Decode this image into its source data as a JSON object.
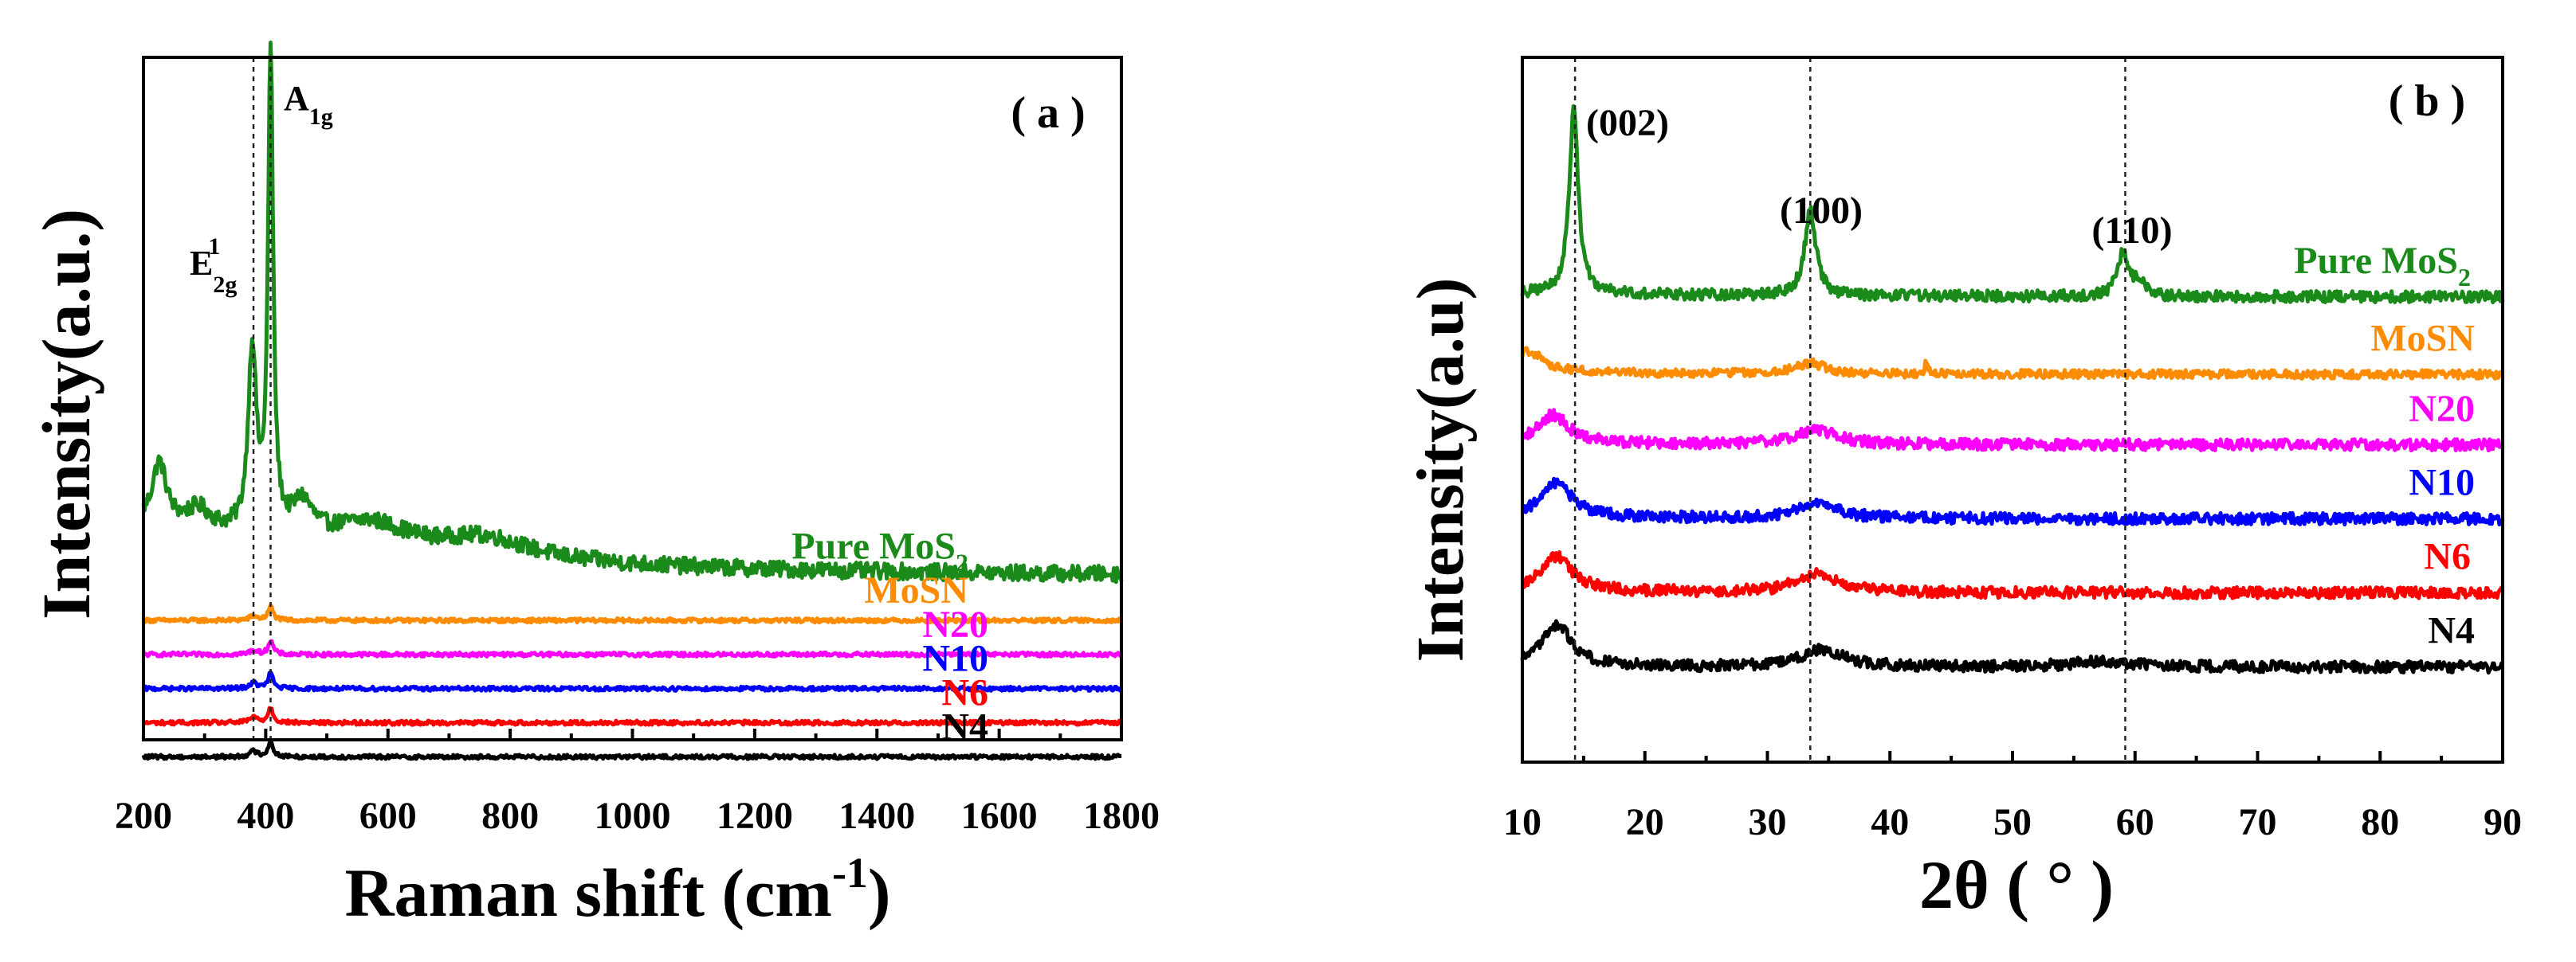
{
  "chart_data": [
    {
      "type": "line",
      "panel_label": "( a )",
      "xlabel": "Raman shift (cm",
      "xlabel_sup": "-1",
      "xlabel_tail": ")",
      "ylabel": "Intensity(a.u.)",
      "xlim": [
        200,
        1800
      ],
      "xticks": [
        "200",
        "400",
        "600",
        "800",
        "1000",
        "1200",
        "1400",
        "1600",
        "1800"
      ],
      "y_ticks_shown": false,
      "peaks": [
        {
          "name": "E",
          "sub": "2g",
          "sup": "1",
          "position": 380
        },
        {
          "name": "A",
          "sub": "1g",
          "position": 408
        }
      ],
      "series": [
        {
          "name": "Pure MoS",
          "name_sub": "2",
          "color": "#1a8a1a",
          "offset": 0.24,
          "peaks": [
            [
              226,
              0.09,
              14
            ],
            [
              290,
              0.03,
              25
            ],
            [
              378,
              0.27,
              8
            ],
            [
              408,
              0.7,
              5
            ],
            [
              460,
              0.05,
              20
            ],
            [
              570,
              0.04,
              80
            ],
            [
              760,
              0.03,
              90
            ]
          ],
          "decay": 0.3,
          "noise": 0.012
        },
        {
          "name": "MoSN",
          "color": "#ff8c00",
          "offset": 0.175,
          "peaks": [
            [
              380,
              0.006,
              8
            ],
            [
              408,
              0.02,
              5
            ]
          ],
          "decay": 0.0,
          "noise": 0.003
        },
        {
          "name": "N20",
          "color": "#ff00ff",
          "offset": 0.125,
          "peaks": [
            [
              380,
              0.006,
              8
            ],
            [
              408,
              0.02,
              5
            ]
          ],
          "decay": 0.0,
          "noise": 0.003
        },
        {
          "name": "N10",
          "color": "#0000ff",
          "offset": 0.075,
          "peaks": [
            [
              380,
              0.008,
              8
            ],
            [
              408,
              0.022,
              5
            ]
          ],
          "decay": 0.0,
          "noise": 0.003
        },
        {
          "name": "N6",
          "color": "#ff0000",
          "offset": 0.025,
          "peaks": [
            [
              380,
              0.008,
              8
            ],
            [
              408,
              0.022,
              5
            ]
          ],
          "decay": 0.0,
          "noise": 0.003
        },
        {
          "name": "N4",
          "color": "#000000",
          "offset": -0.025,
          "peaks": [
            [
              380,
              0.008,
              8
            ],
            [
              408,
              0.022,
              5
            ]
          ],
          "decay": 0.0,
          "noise": 0.003
        }
      ]
    },
    {
      "type": "line",
      "panel_label": "( b )",
      "xlabel": "2θ ( ° )",
      "ylabel": "Intensity(a.u)",
      "xlim": [
        10,
        90
      ],
      "xticks": [
        "10",
        "20",
        "30",
        "40",
        "50",
        "60",
        "70",
        "80",
        "90"
      ],
      "y_ticks_shown": false,
      "peaks": [
        {
          "name": "(002)",
          "position": 14.3
        },
        {
          "name": "(100)",
          "position": 33.5
        },
        {
          "name": "(110)",
          "position": 59.2
        }
      ],
      "series": [
        {
          "name": "Pure MoS",
          "name_sub": "2",
          "color": "#1a8a1a",
          "offset": 0.66,
          "peaks": [
            [
              14.2,
              0.26,
              0.45
            ],
            [
              33.5,
              0.12,
              0.55
            ],
            [
              59.0,
              0.06,
              0.55
            ],
            [
              60.3,
              0.02,
              0.5
            ]
          ],
          "decay": 0.02,
          "noise": 0.008
        },
        {
          "name": "MoSN",
          "color": "#ff8c00",
          "offset": 0.55,
          "peaks": [
            [
              10.5,
              0.03,
              1.5
            ],
            [
              33.5,
              0.015,
              1.5
            ],
            [
              43.0,
              0.02,
              0.15
            ]
          ],
          "decay": 0.01,
          "noise": 0.006
        },
        {
          "name": "N20",
          "color": "#ff00ff",
          "offset": 0.45,
          "peaks": [
            [
              12.5,
              0.04,
              1.5
            ],
            [
              34.0,
              0.02,
              2.0
            ]
          ],
          "decay": 0.01,
          "noise": 0.008
        },
        {
          "name": "N10",
          "color": "#0000ff",
          "offset": 0.345,
          "peaks": [
            [
              12.8,
              0.05,
              1.5
            ],
            [
              34.0,
              0.02,
              2.0
            ]
          ],
          "decay": 0.01,
          "noise": 0.008
        },
        {
          "name": "N6",
          "color": "#ff0000",
          "offset": 0.24,
          "peaks": [
            [
              12.8,
              0.05,
              1.5
            ],
            [
              34.0,
              0.025,
              2.0
            ]
          ],
          "decay": 0.01,
          "noise": 0.008
        },
        {
          "name": "N4",
          "color": "#000000",
          "offset": 0.135,
          "peaks": [
            [
              12.8,
              0.06,
              1.5
            ],
            [
              34.5,
              0.025,
              2.0
            ],
            [
              57.5,
              0.008,
              3.0
            ]
          ],
          "decay": 0.0,
          "noise": 0.008
        }
      ]
    }
  ]
}
